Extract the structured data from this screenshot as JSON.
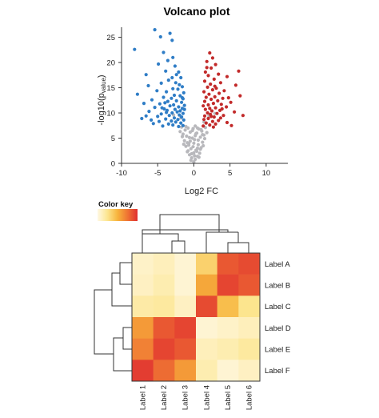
{
  "chart_data": [
    {
      "type": "scatter",
      "title": "Volcano plot",
      "xlabel": "Log2 FC",
      "ylabel_main": "-log10(p",
      "ylabel_sub": "value",
      "ylabel_end": ")",
      "xlim": [
        -10,
        13
      ],
      "ylim": [
        0,
        27
      ],
      "x_ticks": [
        -10,
        -5,
        0,
        5,
        10
      ],
      "y_ticks": [
        0,
        5,
        10,
        15,
        20,
        25
      ],
      "grid": false,
      "colors": {
        "down": "#2f7dc6",
        "up": "#c22a2a",
        "ns": "#b8b8bc"
      },
      "series": [
        {
          "key": "down",
          "points": [
            [
              -5.4,
              26.5
            ],
            [
              -4.6,
              25.1
            ],
            [
              -3.3,
              25.8
            ],
            [
              -3.0,
              24.4
            ],
            [
              -8.2,
              22.6
            ],
            [
              -4.2,
              22.0
            ],
            [
              -2.9,
              21.0
            ],
            [
              -3.6,
              20.4
            ],
            [
              -4.9,
              19.7
            ],
            [
              -2.6,
              19.3
            ],
            [
              -3.9,
              18.3
            ],
            [
              -2.1,
              18.1
            ],
            [
              -6.6,
              17.6
            ],
            [
              -3.0,
              17.0
            ],
            [
              -1.8,
              17.0
            ],
            [
              -2.5,
              16.0
            ],
            [
              -4.5,
              15.9
            ],
            [
              -6.3,
              15.4
            ],
            [
              -1.6,
              15.2
            ],
            [
              -2.9,
              14.8
            ],
            [
              -2.2,
              14.7
            ],
            [
              -5.1,
              14.4
            ],
            [
              -3.8,
              14.2
            ],
            [
              -1.4,
              14.0
            ],
            [
              -7.8,
              13.7
            ],
            [
              -2.7,
              13.5
            ],
            [
              -1.9,
              13.4
            ],
            [
              -4.2,
              13.1
            ],
            [
              -3.1,
              12.9
            ],
            [
              -1.5,
              12.8
            ],
            [
              -5.8,
              12.6
            ],
            [
              -2.4,
              12.4
            ],
            [
              -3.6,
              12.3
            ],
            [
              -1.7,
              12.1
            ],
            [
              -6.9,
              11.9
            ],
            [
              -4.7,
              11.8
            ],
            [
              -2.8,
              11.6
            ],
            [
              -1.3,
              11.5
            ],
            [
              -3.3,
              11.4
            ],
            [
              -2.1,
              11.2
            ],
            [
              -5.4,
              11.1
            ],
            [
              -1.6,
              10.9
            ],
            [
              -4.1,
              10.8
            ],
            [
              -2.6,
              10.7
            ],
            [
              -3.7,
              10.5
            ],
            [
              -1.9,
              10.4
            ],
            [
              -6.2,
              10.3
            ],
            [
              -2.3,
              10.2
            ],
            [
              -3.0,
              10.0
            ],
            [
              -1.5,
              9.9
            ],
            [
              -4.5,
              9.8
            ],
            [
              -2.0,
              9.6
            ],
            [
              -3.4,
              9.5
            ],
            [
              -5.0,
              9.3
            ],
            [
              -1.7,
              9.2
            ],
            [
              -2.7,
              9.0
            ],
            [
              -7.2,
              8.9
            ],
            [
              -3.9,
              8.8
            ],
            [
              -2.2,
              8.7
            ],
            [
              -1.4,
              8.6
            ],
            [
              -3.1,
              8.4
            ],
            [
              -4.8,
              8.3
            ],
            [
              -2.5,
              8.2
            ],
            [
              -1.8,
              8.0
            ],
            [
              -5.6,
              7.9
            ],
            [
              -3.5,
              7.8
            ],
            [
              -2.9,
              7.6
            ],
            [
              -1.5,
              7.5
            ],
            [
              -4.3,
              7.4
            ],
            [
              -2.1,
              7.3
            ],
            [
              -6.6,
              9.4
            ],
            [
              -5.9,
              8.6
            ],
            [
              -4.0,
              12.0
            ],
            [
              -2.4,
              17.6
            ],
            [
              -3.5,
              16.5
            ],
            [
              -1.6,
              13.0
            ],
            [
              -2.0,
              15.6
            ],
            [
              -1.3,
              10.7
            ],
            [
              -3.8,
              10.1
            ],
            [
              -4.4,
              11.0
            ]
          ]
        },
        {
          "key": "up",
          "points": [
            [
              2.2,
              21.9
            ],
            [
              2.6,
              20.9
            ],
            [
              1.8,
              20.2
            ],
            [
              3.0,
              19.6
            ],
            [
              2.4,
              18.9
            ],
            [
              6.2,
              18.3
            ],
            [
              1.6,
              18.1
            ],
            [
              3.4,
              17.7
            ],
            [
              2.0,
              17.4
            ],
            [
              4.6,
              17.2
            ],
            [
              2.8,
              16.7
            ],
            [
              1.5,
              16.3
            ],
            [
              3.7,
              16.0
            ],
            [
              2.3,
              15.7
            ],
            [
              5.8,
              15.5
            ],
            [
              1.9,
              15.1
            ],
            [
              3.1,
              14.9
            ],
            [
              2.6,
              14.6
            ],
            [
              4.2,
              14.4
            ],
            [
              1.4,
              14.2
            ],
            [
              3.5,
              13.9
            ],
            [
              2.1,
              13.7
            ],
            [
              6.4,
              13.4
            ],
            [
              2.9,
              13.2
            ],
            [
              1.7,
              13.1
            ],
            [
              4.0,
              12.9
            ],
            [
              2.4,
              12.7
            ],
            [
              3.3,
              12.4
            ],
            [
              1.5,
              12.3
            ],
            [
              5.1,
              12.1
            ],
            [
              2.7,
              11.9
            ],
            [
              3.8,
              11.7
            ],
            [
              2.0,
              11.6
            ],
            [
              1.3,
              11.4
            ],
            [
              4.5,
              11.2
            ],
            [
              3.0,
              11.0
            ],
            [
              2.2,
              10.9
            ],
            [
              1.6,
              10.7
            ],
            [
              3.6,
              10.5
            ],
            [
              2.5,
              10.4
            ],
            [
              5.6,
              10.2
            ],
            [
              1.9,
              10.0
            ],
            [
              3.2,
              9.9
            ],
            [
              2.3,
              9.7
            ],
            [
              4.1,
              9.5
            ],
            [
              1.5,
              9.4
            ],
            [
              2.8,
              9.2
            ],
            [
              3.7,
              9.0
            ],
            [
              2.0,
              8.9
            ],
            [
              1.4,
              8.7
            ],
            [
              6.8,
              9.5
            ],
            [
              3.4,
              8.5
            ],
            [
              2.6,
              8.3
            ],
            [
              4.6,
              8.1
            ],
            [
              1.7,
              8.0
            ],
            [
              3.0,
              7.8
            ],
            [
              2.2,
              7.6
            ],
            [
              5.2,
              7.5
            ],
            [
              1.3,
              7.4
            ],
            [
              2.7,
              7.2
            ],
            [
              1.8,
              19.0
            ],
            [
              2.9,
              15.3
            ],
            [
              4.8,
              13.0
            ],
            [
              3.9,
              10.8
            ],
            [
              2.4,
              9.3
            ]
          ]
        },
        {
          "key": "ns",
          "points": [
            [
              0.0,
              0.3
            ],
            [
              0.2,
              0.8
            ],
            [
              -0.3,
              1.1
            ],
            [
              0.5,
              1.4
            ],
            [
              -0.6,
              1.7
            ],
            [
              0.8,
              2.0
            ],
            [
              -0.9,
              2.3
            ],
            [
              0.3,
              2.6
            ],
            [
              -0.4,
              2.9
            ],
            [
              1.0,
              3.1
            ],
            [
              -1.1,
              3.4
            ],
            [
              0.6,
              3.7
            ],
            [
              -0.7,
              3.9
            ],
            [
              1.2,
              4.2
            ],
            [
              -1.3,
              4.5
            ],
            [
              0.1,
              4.7
            ],
            [
              -0.2,
              5.0
            ],
            [
              0.9,
              5.2
            ],
            [
              -1.0,
              5.4
            ],
            [
              1.4,
              5.6
            ],
            [
              -1.5,
              5.8
            ],
            [
              0.4,
              6.0
            ],
            [
              -0.5,
              6.2
            ],
            [
              1.1,
              6.4
            ],
            [
              -1.2,
              6.6
            ],
            [
              0.7,
              6.8
            ],
            [
              -0.8,
              7.0
            ],
            [
              1.6,
              7.1
            ],
            [
              -1.7,
              7.2
            ],
            [
              0.2,
              7.4
            ],
            [
              -0.3,
              1.9
            ],
            [
              0.4,
              2.4
            ],
            [
              -0.1,
              3.3
            ],
            [
              0.0,
              4.0
            ],
            [
              0.6,
              4.6
            ],
            [
              -0.6,
              5.1
            ],
            [
              0.3,
              5.9
            ],
            [
              -0.2,
              6.5
            ],
            [
              0.5,
              7.0
            ],
            [
              -0.9,
              4.1
            ],
            [
              1.3,
              3.5
            ],
            [
              -1.4,
              3.8
            ],
            [
              0.9,
              2.8
            ],
            [
              -0.8,
              2.5
            ],
            [
              1.5,
              4.9
            ],
            [
              -1.6,
              5.3
            ],
            [
              0.1,
              1.5
            ],
            [
              -0.4,
              0.6
            ],
            [
              0.7,
              1.2
            ],
            [
              1.8,
              6.1
            ],
            [
              -1.9,
              6.3
            ],
            [
              -0.1,
              6.9
            ],
            [
              0.2,
              5.5
            ],
            [
              -0.5,
              4.4
            ],
            [
              1.0,
              6.7
            ],
            [
              -1.1,
              7.3
            ],
            [
              0.0,
              2.1
            ],
            [
              0.5,
              3.0
            ],
            [
              -0.7,
              3.6
            ],
            [
              1.2,
              5.7
            ],
            [
              -2.8,
              9.6
            ],
            [
              -1.8,
              9.0
            ],
            [
              2.9,
              9.9
            ],
            [
              1.4,
              8.2
            ],
            [
              2.1,
              9.4
            ]
          ]
        }
      ]
    },
    {
      "type": "heatmap",
      "rows": [
        "Label A",
        "Label B",
        "Label C",
        "Label D",
        "Label E",
        "Label F"
      ],
      "columns": [
        "Label 1",
        "Label 2",
        "Label 3",
        "Label 4",
        "Label 5",
        "Label 6"
      ],
      "values": [
        [
          0.08,
          0.12,
          0.05,
          0.35,
          0.85,
          0.9
        ],
        [
          0.1,
          0.15,
          0.05,
          0.55,
          0.92,
          0.85
        ],
        [
          0.18,
          0.2,
          0.1,
          0.9,
          0.45,
          0.25
        ],
        [
          0.6,
          0.85,
          0.92,
          0.05,
          0.08,
          0.12
        ],
        [
          0.7,
          0.92,
          0.85,
          0.12,
          0.15,
          0.2
        ],
        [
          0.95,
          0.78,
          0.6,
          0.15,
          0.05,
          0.1
        ]
      ],
      "color_key_label": "Color key",
      "color_scale": [
        "#fff8e4",
        "#fce58e",
        "#f7b43c",
        "#ef7433",
        "#e02f30"
      ]
    }
  ]
}
